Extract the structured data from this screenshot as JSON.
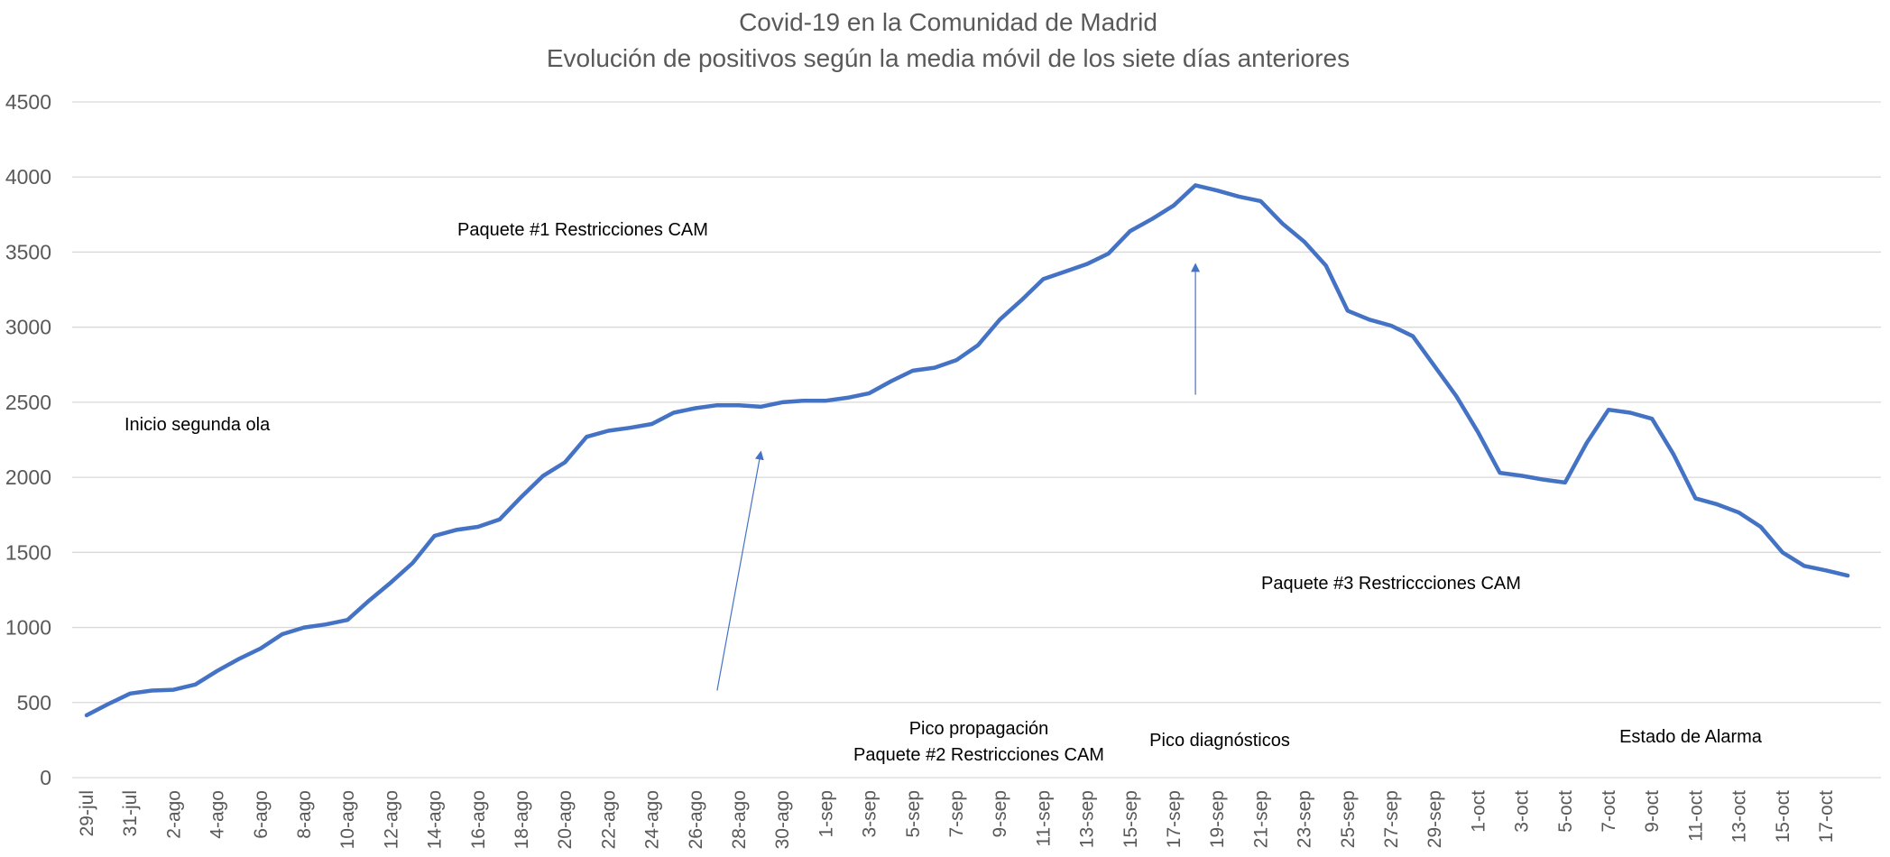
{
  "chart_data": {
    "type": "line",
    "title": "Covid-19 en la Comunidad de Madrid",
    "subtitle": "Evolución de positivos según la media móvil de los siete días anteriores",
    "xlabel": "",
    "ylabel": "",
    "ylim": [
      0,
      4500
    ],
    "yticks": [
      0,
      500,
      1000,
      1500,
      2000,
      2500,
      3000,
      3500,
      4000,
      4500
    ],
    "grid": true,
    "legend": "none",
    "colors": {
      "line": "#4472C4",
      "arrow": "#4472C4",
      "grid": "#D9D9D9",
      "text": "#595959"
    },
    "tick_labels": [
      "29-jul",
      "31-jul",
      "2-ago",
      "4-ago",
      "6-ago",
      "8-ago",
      "10-ago",
      "12-ago",
      "14-ago",
      "16-ago",
      "18-ago",
      "20-ago",
      "22-ago",
      "24-ago",
      "26-ago",
      "28-ago",
      "30-ago",
      "1-sep",
      "3-sep",
      "5-sep",
      "7-sep",
      "9-sep",
      "11-sep",
      "13-sep",
      "15-sep",
      "17-sep",
      "19-sep",
      "21-sep",
      "23-sep",
      "25-sep",
      "27-sep",
      "29-sep",
      "1-oct",
      "3-oct",
      "5-oct",
      "7-oct",
      "9-oct",
      "11-oct",
      "13-oct",
      "15-oct",
      "17-oct"
    ],
    "series": [
      {
        "values": [
          415,
          490,
          560,
          580,
          585,
          620,
          710,
          790,
          860,
          955,
          1000,
          1020,
          1050,
          1180,
          1300,
          1430,
          1610,
          1650,
          1670,
          1720,
          1870,
          2010,
          2100,
          2270,
          2310,
          2330,
          2355,
          2430,
          2460,
          2480,
          2480,
          2470,
          2500,
          2510,
          2510,
          2530,
          2560,
          2640,
          2710,
          2730,
          2780,
          2880,
          3050,
          3180,
          3320,
          3370,
          3420,
          3490,
          3640,
          3720,
          3810,
          3945,
          3910,
          3870,
          3840,
          3690,
          3570,
          3410,
          3110,
          3050,
          3010,
          2940,
          2740,
          2540,
          2300,
          2030,
          2010,
          1985,
          1965,
          2230,
          2450,
          2430,
          2390,
          2150,
          1860,
          1820,
          1765,
          1670,
          1500,
          1410,
          1380,
          1345
        ]
      }
    ],
    "annotations": [
      {
        "lines": [
          "Inicio segunda ola"
        ],
        "arrow_from": [
          29,
          580
        ],
        "arrow_to": [
          31,
          2160
        ]
      },
      {
        "lines": [
          "Paquete #1 Restricciones CAM"
        ],
        "arrow_from": [
          51,
          2550
        ],
        "arrow_to": [
          51,
          3410
        ]
      },
      {
        "lines": [
          "Pico propagación",
          "Paquete #2 Restricciones CAM"
        ],
        "arrow_from": [
          89,
          550
        ],
        "arrow_to": [
          89,
          2560
        ]
      },
      {
        "lines": [
          "Pico diagnósticos"
        ],
        "arrow_from": [
          98,
          520
        ],
        "arrow_to": [
          98,
          3560
        ]
      },
      {
        "lines": [
          "Paquete #3 Restriccciones CAM"
        ],
        "arrow_from": [
          101,
          1500
        ],
        "arrow_to": [
          99,
          3540
        ]
      },
      {
        "lines": [
          "Estado de Alarma"
        ],
        "arrow_from": [
          133,
          530
        ],
        "arrow_to": [
          133,
          1670
        ]
      }
    ]
  }
}
